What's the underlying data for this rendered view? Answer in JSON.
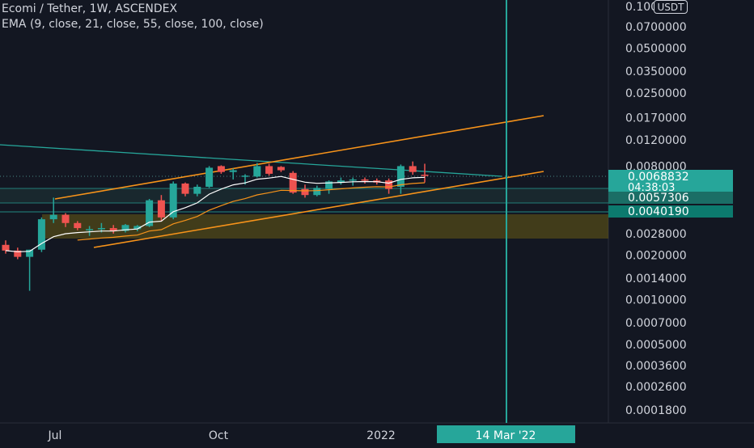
{
  "header": {
    "symbol_title": "Ecomi / Tether, 1W, ASCENDEX",
    "indicator_label": "EMA (9, close, 21, close, 55, close, 100, close)"
  },
  "currency_button": "USDT",
  "colors": {
    "background": "#131722",
    "up_candle": "#26a69a",
    "down_candle": "#ef5350",
    "channel": "#f7931a",
    "trendline": "#26a69a",
    "zone": "#7a6a12",
    "axis_text": "#d1d4dc",
    "price_tag": "#26a69a",
    "vertical_marker": "#26a69a"
  },
  "chart_data": {
    "type": "candlestick",
    "scale": "log",
    "y_axis_ticks": [
      "0.0700000",
      "0.0500000",
      "0.0350000",
      "0.0250000",
      "0.0170000",
      "0.0120000",
      "0.0080000",
      "0.0028000",
      "0.0020000",
      "0.0014000",
      "0.0010000",
      "0.0007000",
      "0.0005000",
      "0.0003600",
      "0.0002600",
      "0.0001800"
    ],
    "y_axis_top_partial": "0.1000000",
    "x_axis_ticks": [
      "Jul",
      "Oct",
      "2022"
    ],
    "price_tags": [
      {
        "value": "0.0068832",
        "countdown": "04:38:03"
      },
      {
        "value": "0.0057306"
      },
      {
        "value": "0.0040190"
      }
    ],
    "crosshair_date": "14 Mar '22",
    "candles": [
      {
        "o": 0.00235,
        "h": 0.00252,
        "l": 0.00205,
        "c": 0.00215
      },
      {
        "o": 0.00215,
        "h": 0.00225,
        "l": 0.00188,
        "c": 0.00195
      },
      {
        "o": 0.00195,
        "h": 0.00218,
        "l": 0.00115,
        "c": 0.00218
      },
      {
        "o": 0.00218,
        "h": 0.0036,
        "l": 0.0021,
        "c": 0.0035
      },
      {
        "o": 0.0035,
        "h": 0.0049,
        "l": 0.0033,
        "c": 0.00375
      },
      {
        "o": 0.00375,
        "h": 0.00385,
        "l": 0.0031,
        "c": 0.0033
      },
      {
        "o": 0.0033,
        "h": 0.0034,
        "l": 0.00295,
        "c": 0.00305
      },
      {
        "o": 0.003,
        "h": 0.00315,
        "l": 0.0027,
        "c": 0.003
      },
      {
        "o": 0.003,
        "h": 0.0033,
        "l": 0.00285,
        "c": 0.00305
      },
      {
        "o": 0.00305,
        "h": 0.0032,
        "l": 0.0028,
        "c": 0.00292
      },
      {
        "o": 0.00292,
        "h": 0.00325,
        "l": 0.00285,
        "c": 0.0032
      },
      {
        "o": 0.003,
        "h": 0.0032,
        "l": 0.0029,
        "c": 0.00315
      },
      {
        "o": 0.00315,
        "h": 0.0048,
        "l": 0.0031,
        "c": 0.0047
      },
      {
        "o": 0.0047,
        "h": 0.0051,
        "l": 0.0034,
        "c": 0.0036
      },
      {
        "o": 0.0036,
        "h": 0.0063,
        "l": 0.0035,
        "c": 0.0061
      },
      {
        "o": 0.0061,
        "h": 0.0062,
        "l": 0.005,
        "c": 0.0052
      },
      {
        "o": 0.0052,
        "h": 0.006,
        "l": 0.005,
        "c": 0.0058
      },
      {
        "o": 0.0058,
        "h": 0.008,
        "l": 0.0057,
        "c": 0.0078
      },
      {
        "o": 0.008,
        "h": 0.0081,
        "l": 0.0071,
        "c": 0.0073
      },
      {
        "o": 0.0073,
        "h": 0.0077,
        "l": 0.0065,
        "c": 0.0075
      },
      {
        "o": 0.0069,
        "h": 0.00705,
        "l": 0.006,
        "c": 0.0069
      },
      {
        "o": 0.0068,
        "h": 0.0084,
        "l": 0.0067,
        "c": 0.008
      },
      {
        "o": 0.008,
        "h": 0.0083,
        "l": 0.0069,
        "c": 0.0071
      },
      {
        "o": 0.0079,
        "h": 0.008,
        "l": 0.0073,
        "c": 0.0075
      },
      {
        "o": 0.0072,
        "h": 0.0074,
        "l": 0.0052,
        "c": 0.0053
      },
      {
        "o": 0.0056,
        "h": 0.006,
        "l": 0.0049,
        "c": 0.0051
      },
      {
        "o": 0.0051,
        "h": 0.0059,
        "l": 0.005,
        "c": 0.0057
      },
      {
        "o": 0.0056,
        "h": 0.0064,
        "l": 0.0052,
        "c": 0.0063
      },
      {
        "o": 0.0062,
        "h": 0.0067,
        "l": 0.006,
        "c": 0.0064
      },
      {
        "o": 0.0064,
        "h": 0.0067,
        "l": 0.0059,
        "c": 0.0065
      },
      {
        "o": 0.0065,
        "h": 0.0067,
        "l": 0.0061,
        "c": 0.0064
      },
      {
        "o": 0.0064,
        "h": 0.0066,
        "l": 0.006,
        "c": 0.0062
      },
      {
        "o": 0.0064,
        "h": 0.0066,
        "l": 0.0052,
        "c": 0.0056
      },
      {
        "o": 0.0058,
        "h": 0.0082,
        "l": 0.0052,
        "c": 0.008
      },
      {
        "o": 0.008,
        "h": 0.0086,
        "l": 0.007,
        "c": 0.0073
      },
      {
        "o": 0.007,
        "h": 0.0083,
        "l": 0.0062,
        "c": 0.0069
      }
    ]
  }
}
